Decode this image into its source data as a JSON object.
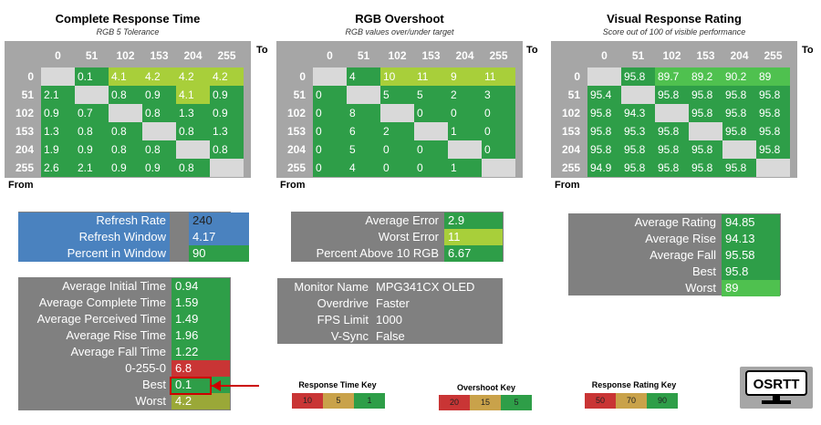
{
  "chart_data": [
    {
      "type": "heatmap",
      "title": "Complete Response Time",
      "subtitle": "RGB 5 Tolerance",
      "x_axis_title": "To",
      "y_axis_title": "From",
      "columns": [
        "0",
        "51",
        "102",
        "153",
        "204",
        "255"
      ],
      "rows": [
        "0",
        "51",
        "102",
        "153",
        "204",
        "255"
      ],
      "values": [
        [
          "",
          "0.1",
          "4.1",
          "4.2",
          "4.2",
          "4.2"
        ],
        [
          "2.1",
          "",
          "0.8",
          "0.9",
          "4.1",
          "0.9"
        ],
        [
          "0.9",
          "0.7",
          "",
          "0.8",
          "1.3",
          "0.9"
        ],
        [
          "1.3",
          "0.8",
          "0.8",
          "",
          "0.8",
          "1.3"
        ],
        [
          "1.9",
          "0.9",
          "0.8",
          "0.8",
          "",
          "0.8"
        ],
        [
          "2.6",
          "2.1",
          "0.9",
          "0.9",
          "0.8",
          ""
        ]
      ]
    },
    {
      "type": "heatmap",
      "title": "RGB Overshoot",
      "subtitle": "RGB values over/under target",
      "x_axis_title": "To",
      "y_axis_title": "From",
      "columns": [
        "0",
        "51",
        "102",
        "153",
        "204",
        "255"
      ],
      "rows": [
        "0",
        "51",
        "102",
        "153",
        "204",
        "255"
      ],
      "values": [
        [
          "",
          "4",
          "10",
          "11",
          "9",
          "11"
        ],
        [
          "0",
          "",
          "5",
          "5",
          "2",
          "3"
        ],
        [
          "0",
          "8",
          "",
          "0",
          "0",
          "0"
        ],
        [
          "0",
          "6",
          "2",
          "",
          "1",
          "0"
        ],
        [
          "0",
          "5",
          "0",
          "0",
          "",
          "0"
        ],
        [
          "0",
          "4",
          "0",
          "0",
          "1",
          ""
        ]
      ]
    },
    {
      "type": "heatmap",
      "title": "Visual Response Rating",
      "subtitle": "Score out of 100 of visible performance",
      "x_axis_title": "To",
      "y_axis_title": "From",
      "columns": [
        "0",
        "51",
        "102",
        "153",
        "204",
        "255"
      ],
      "rows": [
        "0",
        "51",
        "102",
        "153",
        "204",
        "255"
      ],
      "values": [
        [
          "",
          "95.8",
          "89.7",
          "89.2",
          "90.2",
          "89"
        ],
        [
          "95.4",
          "",
          "95.8",
          "95.8",
          "95.8",
          "95.8"
        ],
        [
          "95.8",
          "94.3",
          "",
          "95.8",
          "95.8",
          "95.8"
        ],
        [
          "95.8",
          "95.3",
          "95.8",
          "",
          "95.8",
          "95.8"
        ],
        [
          "95.8",
          "95.8",
          "95.8",
          "95.8",
          "",
          "95.8"
        ],
        [
          "94.9",
          "95.8",
          "95.8",
          "95.8",
          "95.8",
          ""
        ]
      ]
    }
  ],
  "colors": {
    "matrix_bg": "#a6a6a6",
    "blank": "#d9d9d9",
    "stat_bg": "#808080",
    "refresh_bg": "#4a82bf",
    "green": "#2e9e48",
    "bright_green": "#4fc14f",
    "yellow_green": "#a8cf3a",
    "olive": "#9aa838",
    "tan": "#c9a24a",
    "red": "#c93535",
    "arrow": "#cc0000"
  },
  "refresh": [
    {
      "label": "Refresh Rate",
      "value": "240"
    },
    {
      "label": "Refresh Window",
      "value": "4.17"
    },
    {
      "label": "Percent in Window",
      "value": "90"
    }
  ],
  "overshoot_stats": [
    {
      "label": "Average Error",
      "value": "2.9"
    },
    {
      "label": "Worst Error",
      "value": "11"
    },
    {
      "label": "Percent Above 10 RGB",
      "value": "6.67"
    }
  ],
  "rating_stats": [
    {
      "label": "Average Rating",
      "value": "94.85"
    },
    {
      "label": "Average Rise",
      "value": "94.13"
    },
    {
      "label": "Average Fall",
      "value": "95.58"
    },
    {
      "label": "Best",
      "value": "95.8"
    },
    {
      "label": "Worst",
      "value": "89"
    }
  ],
  "time_stats": [
    {
      "label": "Average Initial Time",
      "value": "0.94"
    },
    {
      "label": "Average Complete Time",
      "value": "1.59"
    },
    {
      "label": "Average Perceived Time",
      "value": "1.49"
    },
    {
      "label": "Average Rise Time",
      "value": "1.96"
    },
    {
      "label": "Average Fall Time",
      "value": "1.22"
    },
    {
      "label": "0-255-0",
      "value": "6.8"
    },
    {
      "label": "Best",
      "value": "0.1"
    },
    {
      "label": "Worst",
      "value": "4.2"
    }
  ],
  "monitor_info": [
    {
      "label": "Monitor Name",
      "value": "MPG341CX OLED"
    },
    {
      "label": "Overdrive",
      "value": "Faster"
    },
    {
      "label": "FPS Limit",
      "value": "1000"
    },
    {
      "label": "V-Sync",
      "value": "False"
    }
  ],
  "keys": [
    {
      "title": "Response Time Key",
      "values": [
        "10",
        "5",
        "1"
      ]
    },
    {
      "title": "Overshoot Key",
      "values": [
        "20",
        "15",
        "5"
      ]
    },
    {
      "title": "Response Rating Key",
      "values": [
        "50",
        "70",
        "90"
      ]
    }
  ],
  "logo_text": "OSRTT"
}
